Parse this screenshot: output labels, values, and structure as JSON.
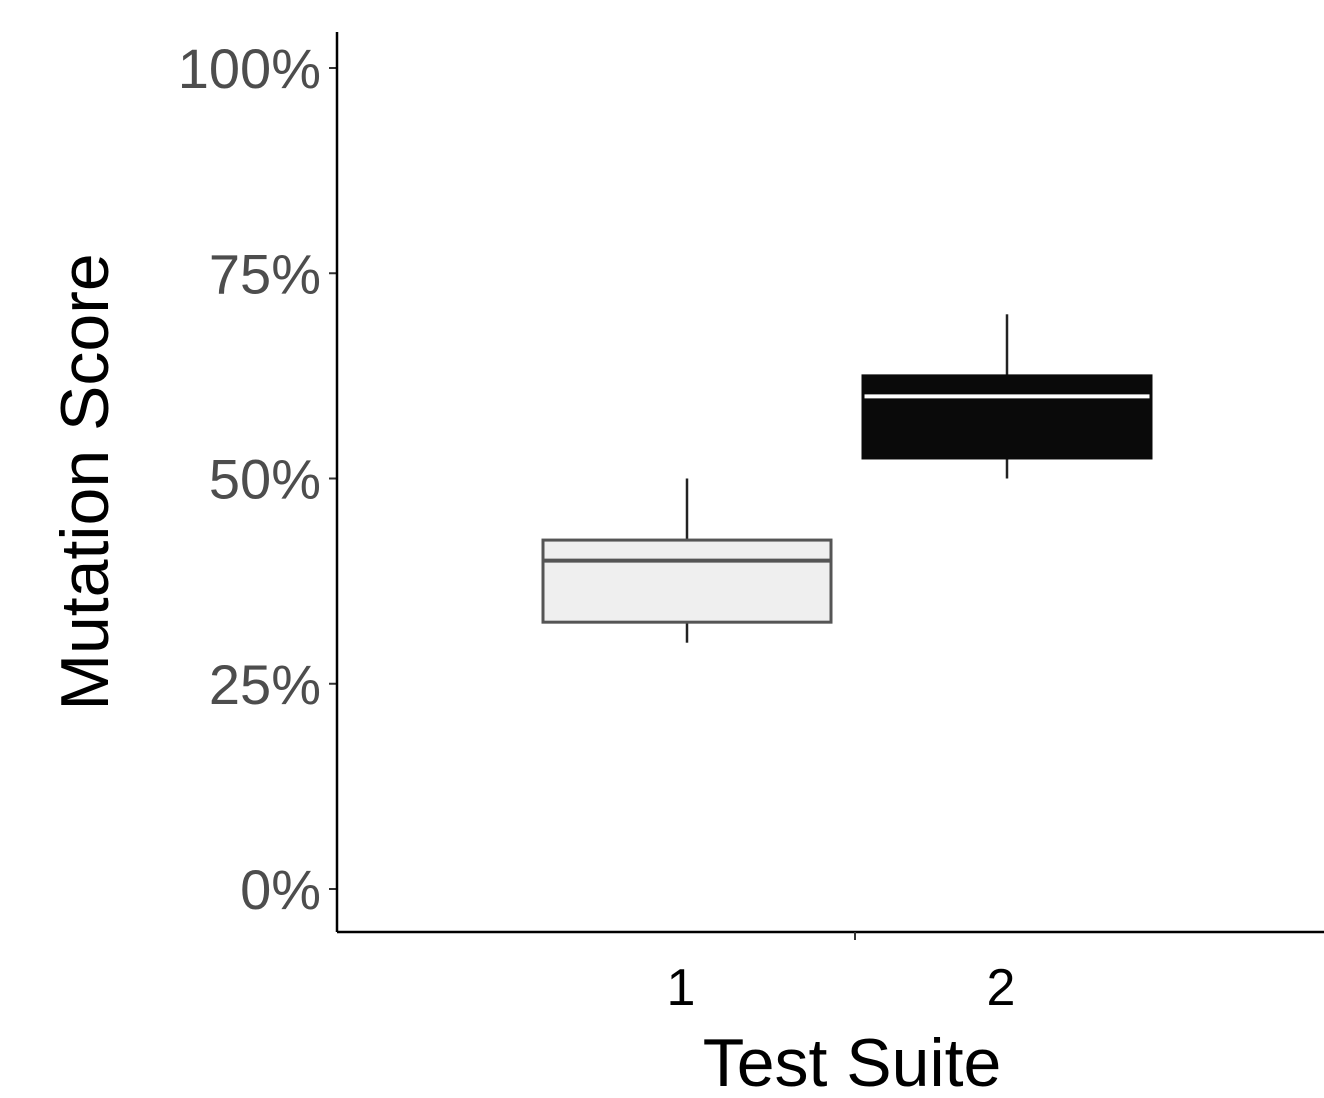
{
  "chart_data": {
    "type": "boxplot",
    "title": "",
    "xlabel": "Test Suite",
    "ylabel": "Mutation Score",
    "ylim": [
      0,
      100
    ],
    "y_unit": "%",
    "yticks": [
      0,
      25,
      50,
      75,
      100
    ],
    "ytick_labels": [
      "0%",
      "25%",
      "50%",
      "75%",
      "100%"
    ],
    "categories": [
      "1",
      "2"
    ],
    "boxes": [
      {
        "category": "1",
        "whisker_low": 30,
        "q1": 32.5,
        "median": 40,
        "q3": 42.5,
        "whisker_high": 50,
        "fill": "#efefef",
        "stroke": "#555555",
        "median_color": "#555555"
      },
      {
        "category": "2",
        "whisker_low": 50,
        "q1": 52.5,
        "median": 60,
        "q3": 62.5,
        "whisker_high": 70,
        "fill": "#0a0a0a",
        "stroke": "#0a0a0a",
        "median_color": "#ffffff"
      }
    ],
    "grid": false,
    "legend": "none"
  }
}
